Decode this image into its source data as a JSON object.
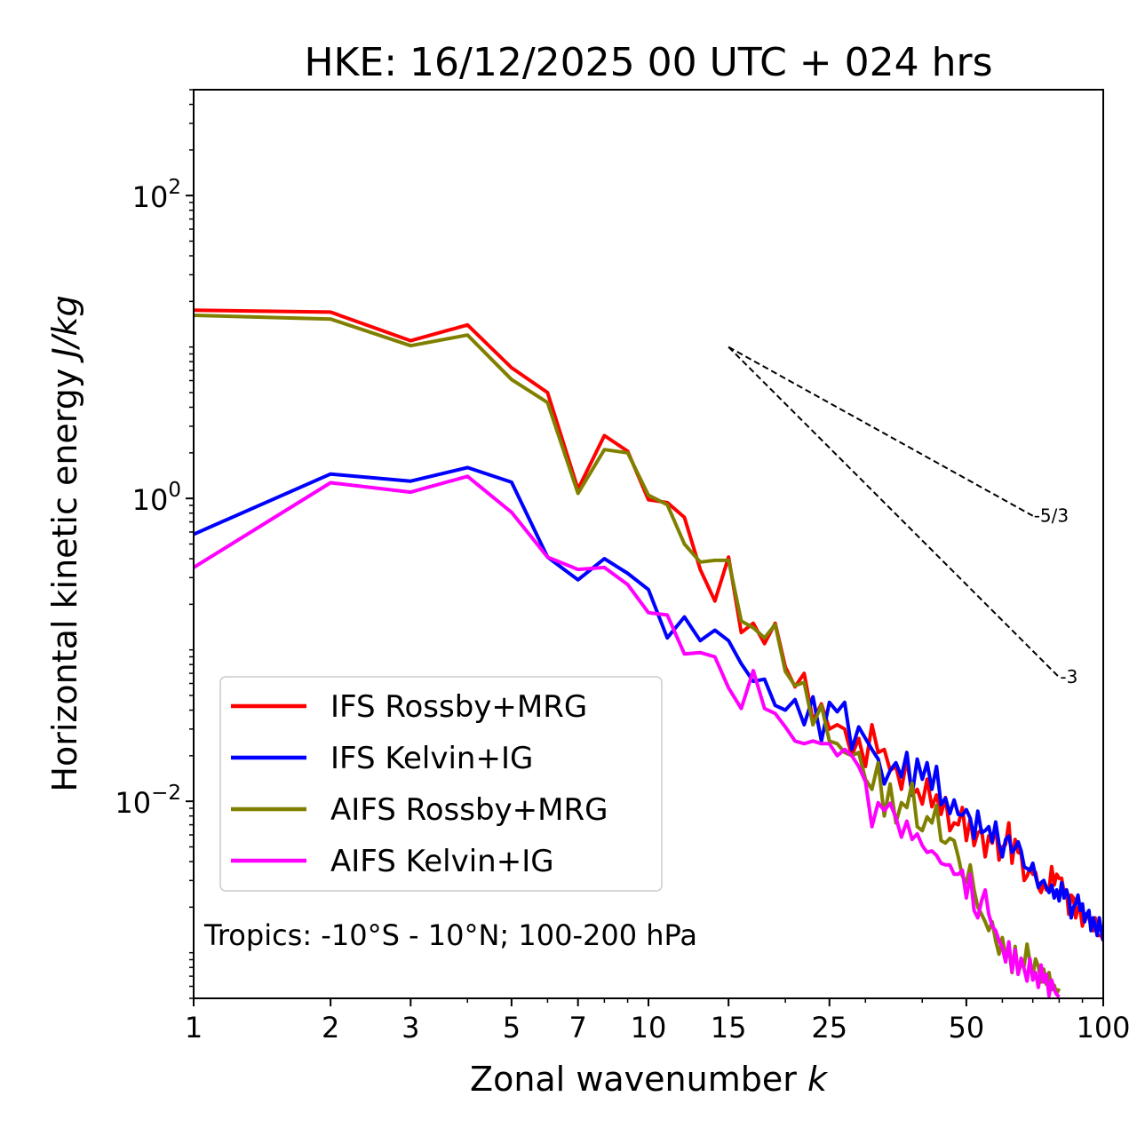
{
  "chart_data": {
    "type": "line",
    "title": "HKE: 16/12/2025 00 UTC + 024 hrs",
    "xlabel_main": "Zonal wavenumber ",
    "xlabel_var": "k",
    "ylabel_main": "Horizontal kinetic energy ",
    "ylabel_unit": "J/kg",
    "x_scale": "log",
    "y_scale": "log",
    "xlim": [
      1,
      100
    ],
    "ylim": [
      0.0005,
      500
    ],
    "x_ticks": [
      {
        "value": 1,
        "label": "1"
      },
      {
        "value": 2,
        "label": "2"
      },
      {
        "value": 3,
        "label": "3"
      },
      {
        "value": 5,
        "label": "5"
      },
      {
        "value": 7,
        "label": "7"
      },
      {
        "value": 10,
        "label": "10"
      },
      {
        "value": 15,
        "label": "15"
      },
      {
        "value": 25,
        "label": "25"
      },
      {
        "value": 50,
        "label": "50"
      },
      {
        "value": 100,
        "label": "100"
      }
    ],
    "y_ticks": [
      {
        "value": 100,
        "base": "10",
        "exp": "2"
      },
      {
        "value": 1,
        "base": "10",
        "exp": "0"
      },
      {
        "value": 0.01,
        "base": "10",
        "exp": "−2"
      }
    ],
    "annotation": "Tropics: -10°S - 10°N; 100-200 hPa",
    "legend_position": "lower-left",
    "series": [
      {
        "name": "IFS Rossby+MRG",
        "color": "#ff0000",
        "x": [
          1,
          2,
          3,
          4,
          5,
          6,
          7,
          8,
          9,
          10,
          11,
          12,
          13,
          14,
          15,
          16,
          17,
          18,
          19,
          20,
          21,
          22,
          23,
          24,
          25,
          26,
          27,
          28,
          29,
          30,
          31,
          32,
          33,
          34,
          35,
          36,
          37,
          38,
          39,
          40,
          41,
          42,
          43,
          44,
          45,
          46,
          47,
          48,
          49,
          50,
          51,
          52,
          53,
          54,
          55,
          56,
          57,
          58,
          59,
          60,
          61,
          62,
          63,
          64,
          65,
          66,
          67,
          68,
          69,
          70,
          71,
          72,
          73,
          74,
          75,
          76,
          77,
          78,
          79,
          80,
          81,
          82,
          83,
          84,
          85,
          86,
          87,
          88,
          89,
          90,
          91,
          92,
          93,
          94,
          95,
          96,
          97,
          98,
          99,
          100
        ],
        "y": [
          17.5,
          17.0,
          11.0,
          14.0,
          7.3,
          5.0,
          1.15,
          2.6,
          2.05,
          0.98,
          0.94,
          0.75,
          0.34,
          0.21,
          0.41,
          0.13,
          0.15,
          0.11,
          0.15,
          0.077,
          0.057,
          0.07,
          0.034,
          0.044,
          0.03,
          0.032,
          0.03,
          0.02,
          0.026,
          0.017,
          0.032,
          0.021,
          0.022,
          0.016,
          0.017,
          0.012,
          0.019,
          0.011,
          0.012,
          0.0096,
          0.014,
          0.0092,
          0.011,
          0.0082,
          0.0106,
          0.0064,
          0.0072,
          0.007,
          0.0091,
          0.0055,
          0.0077,
          0.0051,
          0.0062,
          0.0065,
          0.0043,
          0.0059,
          0.0053,
          0.0069,
          0.0041,
          0.005,
          0.0052,
          0.0072,
          0.0039,
          0.0056,
          0.0046,
          0.0045,
          0.003,
          0.0032,
          0.0036,
          0.0033,
          0.0034,
          0.0027,
          0.0025,
          0.0029,
          0.0026,
          0.0026,
          0.0037,
          0.0028,
          0.0033,
          0.0031,
          0.0031,
          0.0025,
          0.0026,
          0.0018,
          0.0024,
          0.0023,
          0.0017,
          0.002,
          0.0019,
          0.0015,
          0.0018,
          0.0018,
          0.0017,
          0.0015,
          0.0014,
          0.0017,
          0.0013,
          0.0013,
          0.0013,
          0.0012
        ]
      },
      {
        "name": "IFS Kelvin+IG",
        "color": "#0000ff",
        "x": [
          1,
          2,
          3,
          4,
          5,
          6,
          7,
          8,
          9,
          10,
          11,
          12,
          13,
          14,
          15,
          16,
          17,
          18,
          19,
          20,
          21,
          22,
          23,
          24,
          25,
          26,
          27,
          28,
          29,
          30,
          31,
          32,
          33,
          34,
          35,
          36,
          37,
          38,
          39,
          40,
          41,
          42,
          43,
          44,
          45,
          46,
          47,
          48,
          49,
          50,
          51,
          52,
          53,
          54,
          55,
          56,
          57,
          58,
          59,
          60,
          61,
          62,
          63,
          64,
          65,
          66,
          67,
          68,
          69,
          70,
          71,
          72,
          73,
          74,
          75,
          76,
          77,
          78,
          79,
          80,
          81,
          82,
          83,
          84,
          85,
          86,
          87,
          88,
          89,
          90,
          91,
          92,
          93,
          94,
          95,
          96,
          97,
          98,
          99,
          100
        ],
        "y": [
          0.58,
          1.45,
          1.3,
          1.6,
          1.28,
          0.41,
          0.29,
          0.4,
          0.32,
          0.25,
          0.12,
          0.165,
          0.115,
          0.135,
          0.115,
          0.081,
          0.062,
          0.064,
          0.043,
          0.04,
          0.047,
          0.032,
          0.049,
          0.025,
          0.045,
          0.039,
          0.045,
          0.022,
          0.031,
          0.026,
          0.022,
          0.019,
          0.013,
          0.016,
          0.018,
          0.0145,
          0.021,
          0.011,
          0.019,
          0.014,
          0.018,
          0.012,
          0.017,
          0.0095,
          0.0105,
          0.0083,
          0.0102,
          0.0082,
          0.0081,
          0.0088,
          0.0077,
          0.0057,
          0.0086,
          0.0062,
          0.0064,
          0.0068,
          0.0054,
          0.0073,
          0.0052,
          0.0043,
          0.0056,
          0.0059,
          0.0046,
          0.0049,
          0.0054,
          0.0047,
          0.0037,
          0.0036,
          0.0035,
          0.0039,
          0.0032,
          0.0027,
          0.0029,
          0.003,
          0.0027,
          0.0025,
          0.0028,
          0.0023,
          0.0026,
          0.0022,
          0.0029,
          0.0023,
          0.0026,
          0.0023,
          0.0017,
          0.002,
          0.0021,
          0.0024,
          0.0019,
          0.0021,
          0.0016,
          0.0018,
          0.0019,
          0.0014,
          0.0017,
          0.0015,
          0.0013,
          0.0017,
          0.0014,
          0.0012
        ]
      },
      {
        "name": "AIFS Rossby+MRG",
        "color": "#808000",
        "x": [
          1,
          2,
          3,
          4,
          5,
          6,
          7,
          8,
          9,
          10,
          11,
          12,
          13,
          14,
          15,
          16,
          17,
          18,
          19,
          20,
          21,
          22,
          23,
          24,
          25,
          26,
          27,
          28,
          29,
          30,
          31,
          32,
          33,
          34,
          35,
          36,
          37,
          38,
          39,
          40,
          41,
          42,
          43,
          44,
          45,
          46,
          47,
          48,
          49,
          50,
          51,
          52,
          53,
          54,
          55,
          56,
          57,
          58,
          59,
          60,
          61,
          62,
          63,
          64,
          65,
          66,
          67,
          68,
          69,
          70,
          71,
          72,
          73,
          74,
          75,
          76,
          77,
          78,
          79,
          80
        ],
        "y": [
          16.2,
          15.3,
          10.2,
          12.0,
          6.1,
          4.3,
          1.08,
          2.1,
          2.0,
          1.05,
          0.91,
          0.5,
          0.38,
          0.39,
          0.39,
          0.155,
          0.14,
          0.12,
          0.147,
          0.072,
          0.058,
          0.061,
          0.032,
          0.043,
          0.025,
          0.024,
          0.021,
          0.02,
          0.021,
          0.014,
          0.012,
          0.018,
          0.008,
          0.013,
          0.0072,
          0.0098,
          0.0091,
          0.0132,
          0.0068,
          0.0064,
          0.0079,
          0.0072,
          0.0094,
          0.0055,
          0.0053,
          0.0057,
          0.0055,
          0.0043,
          0.0032,
          0.0029,
          0.0038,
          0.0026,
          0.002,
          0.0018,
          0.0016,
          0.0014,
          0.0016,
          0.0012,
          0.00098,
          0.00126,
          0.00094,
          0.00108,
          0.00074,
          0.0011,
          0.00073,
          0.00085,
          0.00082,
          0.00114,
          0.00087,
          0.00071,
          0.00091,
          0.00081,
          0.00064,
          0.00078,
          0.00062,
          0.00074,
          0.00057,
          0.00061,
          0.00054,
          0.00058
        ]
      },
      {
        "name": "AIFS Kelvin+IG",
        "color": "#ff00ff",
        "x": [
          1,
          2,
          3,
          4,
          5,
          6,
          7,
          8,
          9,
          10,
          11,
          12,
          13,
          14,
          15,
          16,
          17,
          18,
          19,
          20,
          21,
          22,
          23,
          24,
          25,
          26,
          27,
          28,
          29,
          30,
          31,
          32,
          33,
          34,
          35,
          36,
          37,
          38,
          39,
          40,
          41,
          42,
          43,
          44,
          45,
          46,
          47,
          48,
          49,
          50,
          51,
          52,
          53,
          54,
          55,
          56,
          57,
          58,
          59,
          60,
          61,
          62,
          63,
          64,
          65,
          66,
          67,
          68,
          69,
          70,
          71,
          72,
          73,
          74,
          75,
          76,
          77,
          78,
          79,
          80
        ],
        "y": [
          0.35,
          1.27,
          1.1,
          1.4,
          0.81,
          0.41,
          0.34,
          0.35,
          0.27,
          0.176,
          0.17,
          0.094,
          0.096,
          0.09,
          0.056,
          0.041,
          0.073,
          0.041,
          0.038,
          0.031,
          0.025,
          0.024,
          0.025,
          0.024,
          0.024,
          0.02,
          0.022,
          0.02,
          0.017,
          0.0135,
          0.0068,
          0.0098,
          0.0087,
          0.0097,
          0.0078,
          0.0058,
          0.0074,
          0.0056,
          0.0061,
          0.0051,
          0.0046,
          0.0047,
          0.0044,
          0.0039,
          0.0038,
          0.0038,
          0.0033,
          0.0033,
          0.0035,
          0.0023,
          0.0033,
          0.0019,
          0.0017,
          0.0022,
          0.0026,
          0.0018,
          0.0015,
          0.0014,
          0.0012,
          0.00108,
          0.00087,
          0.00118,
          0.00075,
          0.00105,
          0.00072,
          0.00092,
          0.00078,
          0.00065,
          0.00091,
          0.00066,
          0.00074,
          0.00059,
          0.00083,
          0.00064,
          0.00072,
          0.00052,
          0.00066,
          0.00057,
          0.00053,
          0.00051
        ]
      }
    ],
    "reference_lines": [
      {
        "label": "-5/3",
        "x": [
          15,
          70
        ],
        "y0": 10.0,
        "slope": -1.6667
      },
      {
        "label": "-3",
        "x": [
          15,
          80
        ],
        "y0": 10.0,
        "slope": -3
      }
    ]
  }
}
